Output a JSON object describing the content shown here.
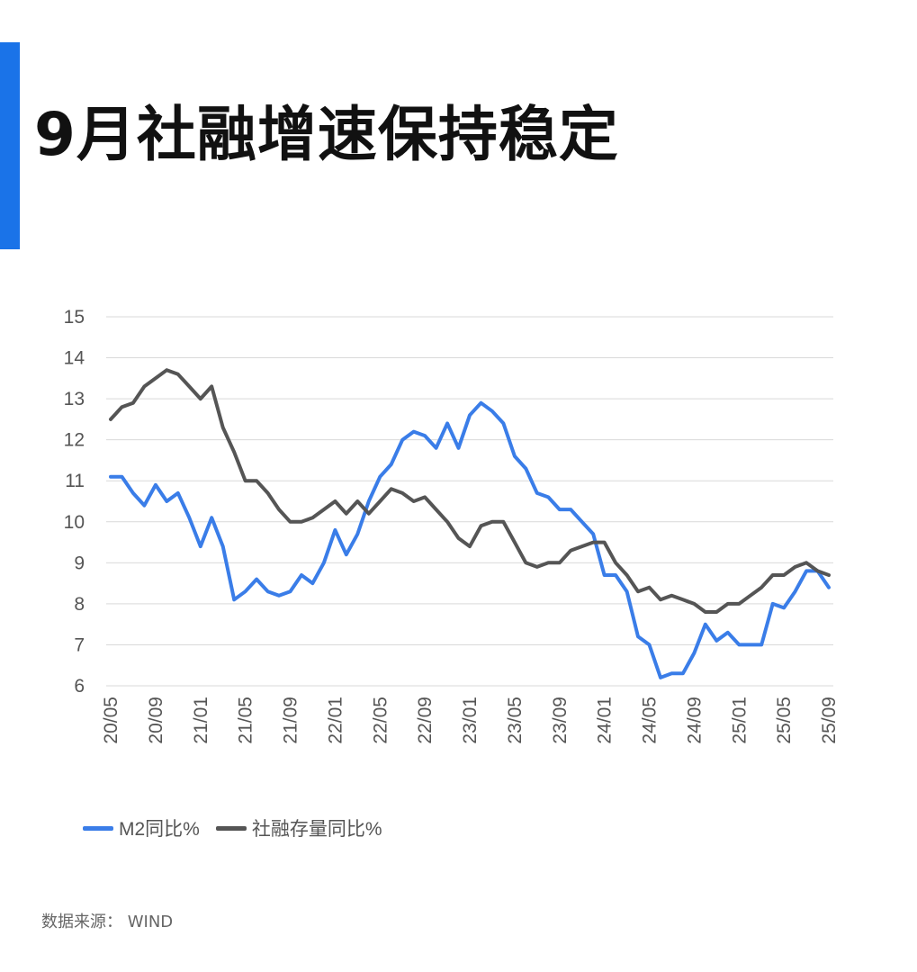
{
  "title": "9月社融增速保持稳定",
  "source_label": "数据来源：",
  "source_value": "WIND",
  "colors": {
    "accent": "#1a73e8",
    "m2": "#3a7de8",
    "tsf": "#555555"
  },
  "chart_data": {
    "type": "line",
    "title": "9月社融增速保持稳定",
    "xlabel": "",
    "ylabel": "",
    "ylim": [
      6,
      15
    ],
    "yticks": [
      6,
      7,
      8,
      9,
      10,
      11,
      12,
      13,
      14,
      15
    ],
    "grid": true,
    "legend_position": "bottom-left",
    "xtick_labels": [
      "20/05",
      "20/09",
      "21/01",
      "21/05",
      "21/09",
      "22/01",
      "22/05",
      "22/09",
      "23/01",
      "23/05",
      "23/09",
      "24/01",
      "24/05",
      "24/09",
      "25/01",
      "25/05",
      "25/09"
    ],
    "x": [
      "20/05",
      "20/06",
      "20/07",
      "20/08",
      "20/09",
      "20/10",
      "20/11",
      "20/12",
      "21/01",
      "21/02",
      "21/03",
      "21/04",
      "21/05",
      "21/06",
      "21/07",
      "21/08",
      "21/09",
      "21/10",
      "21/11",
      "21/12",
      "22/01",
      "22/02",
      "22/03",
      "22/04",
      "22/05",
      "22/06",
      "22/07",
      "22/08",
      "22/09",
      "22/10",
      "22/11",
      "22/12",
      "23/01",
      "23/02",
      "23/03",
      "23/04",
      "23/05",
      "23/06",
      "23/07",
      "23/08",
      "23/09",
      "23/10",
      "23/11",
      "23/12",
      "24/01",
      "24/02",
      "24/03",
      "24/04",
      "24/05",
      "24/06",
      "24/07",
      "24/08",
      "24/09",
      "24/10",
      "24/11",
      "24/12",
      "25/01",
      "25/02",
      "25/03",
      "25/04",
      "25/05",
      "25/06",
      "25/07",
      "25/08",
      "25/09"
    ],
    "series": [
      {
        "name": "M2同比%",
        "values": [
          11.1,
          11.1,
          10.7,
          10.4,
          10.9,
          10.5,
          10.7,
          10.1,
          9.4,
          10.1,
          9.4,
          8.1,
          8.3,
          8.6,
          8.3,
          8.2,
          8.3,
          8.7,
          8.5,
          9.0,
          9.8,
          9.2,
          9.7,
          10.5,
          11.1,
          11.4,
          12.0,
          12.2,
          12.1,
          11.8,
          12.4,
          11.8,
          12.6,
          12.9,
          12.7,
          12.4,
          11.6,
          11.3,
          10.7,
          10.6,
          10.3,
          10.3,
          10.0,
          9.7,
          8.7,
          8.7,
          8.3,
          7.2,
          7.0,
          6.2,
          6.3,
          6.3,
          6.8,
          7.5,
          7.1,
          7.3,
          7.0,
          7.0,
          7.0,
          8.0,
          7.9,
          8.3,
          8.8,
          8.8,
          8.4
        ]
      },
      {
        "name": "社融存量同比%",
        "values": [
          12.5,
          12.8,
          12.9,
          13.3,
          13.5,
          13.7,
          13.6,
          13.3,
          13.0,
          13.3,
          12.3,
          11.7,
          11.0,
          11.0,
          10.7,
          10.3,
          10.0,
          10.0,
          10.1,
          10.3,
          10.5,
          10.2,
          10.5,
          10.2,
          10.5,
          10.8,
          10.7,
          10.5,
          10.6,
          10.3,
          10.0,
          9.6,
          9.4,
          9.9,
          10.0,
          10.0,
          9.5,
          9.0,
          8.9,
          9.0,
          9.0,
          9.3,
          9.4,
          9.5,
          9.5,
          9.0,
          8.7,
          8.3,
          8.4,
          8.1,
          8.2,
          8.1,
          8.0,
          7.8,
          7.8,
          8.0,
          8.0,
          8.2,
          8.4,
          8.7,
          8.7,
          8.9,
          9.0,
          8.8,
          8.7
        ]
      }
    ]
  }
}
